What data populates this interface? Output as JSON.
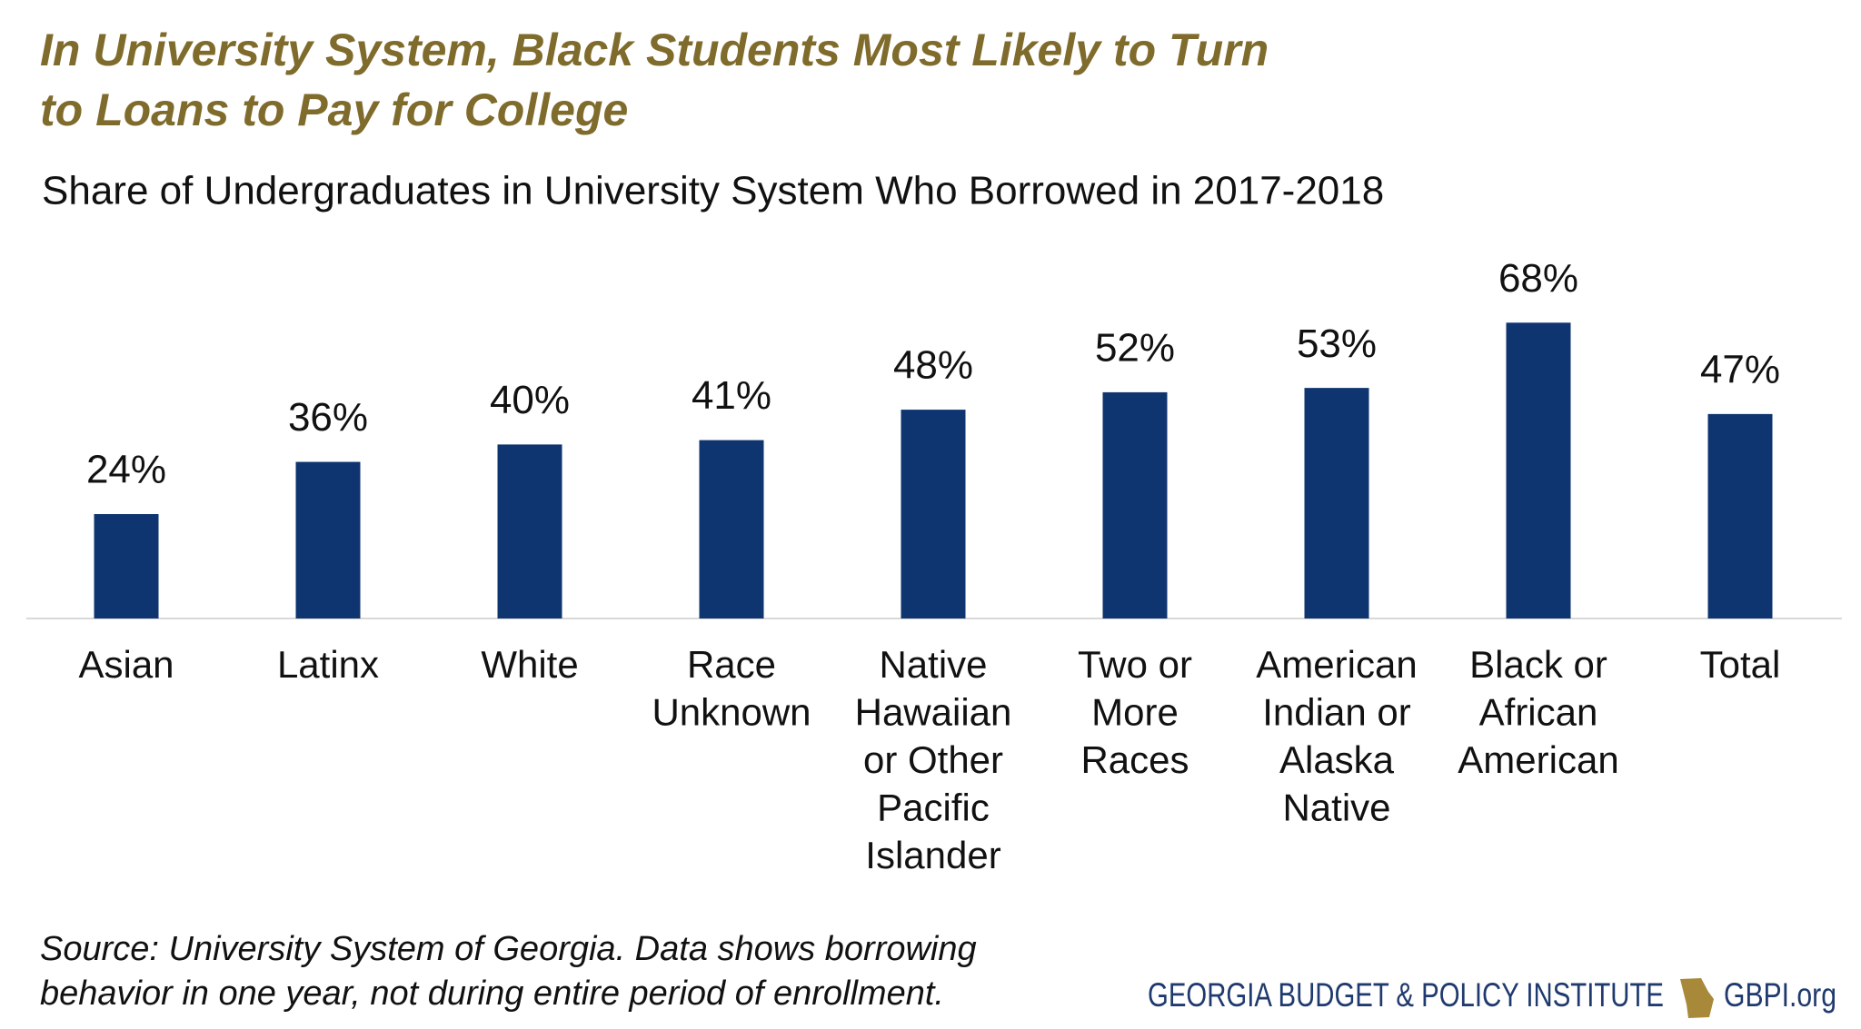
{
  "chart_data": {
    "type": "bar",
    "title": [
      "In University System, Black Students Most Likely to Turn",
      "to Loans to Pay for College"
    ],
    "subtitle": "Share of Undergraduates in University System Who Borrowed in 2017-2018",
    "categories": [
      [
        "Asian"
      ],
      [
        "Latinx"
      ],
      [
        "White"
      ],
      [
        "Race",
        "Unknown"
      ],
      [
        "Native",
        "Hawaiian",
        "or Other",
        "Pacific",
        "Islander"
      ],
      [
        "Two or",
        "More",
        "Races"
      ],
      [
        "American",
        "Indian or",
        "Alaska",
        "Native"
      ],
      [
        "Black or",
        "African",
        "American"
      ],
      [
        "Total"
      ]
    ],
    "values": [
      24,
      36,
      40,
      41,
      48,
      52,
      53,
      68,
      47
    ],
    "value_labels": [
      "24%",
      "36%",
      "40%",
      "41%",
      "48%",
      "52%",
      "53%",
      "68%",
      "47%"
    ],
    "color": "#0f3570",
    "source": [
      "Source: University System of Georgia. Data shows borrowing",
      "behavior in one year, not during entire period of enrollment."
    ],
    "footer": {
      "organization": "GEORGIA BUDGET & POLICY INSTITUTE",
      "website": "GBPI.org"
    }
  }
}
